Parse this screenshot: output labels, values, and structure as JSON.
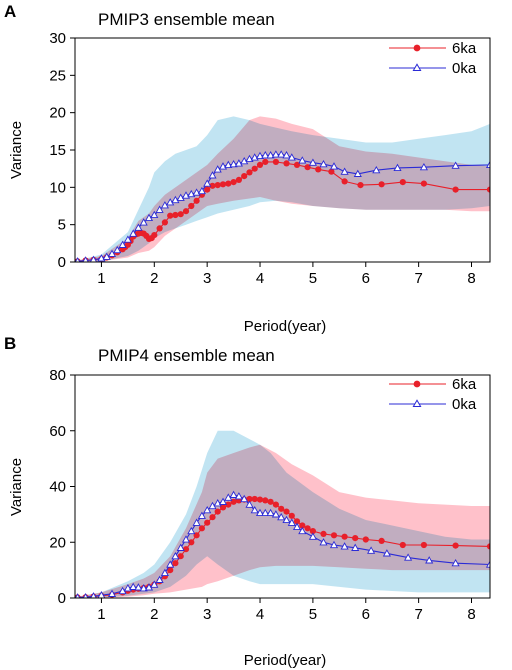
{
  "chart_data": [
    {
      "type": "line",
      "panel_label": "A",
      "title": "PMIP3 ensemble mean",
      "xlabel": "Period(year)",
      "ylabel": "Variance",
      "xlim": [
        0.5,
        8.35
      ],
      "ylim": [
        0,
        30
      ],
      "xticks": [
        1,
        2,
        3,
        4,
        5,
        6,
        7,
        8
      ],
      "yticks": [
        0,
        5,
        10,
        15,
        20,
        25,
        30
      ],
      "grid": false,
      "legend_position": "top-right",
      "series": [
        {
          "name": "6ka",
          "color": "#e8202a",
          "marker": "filled-circle",
          "x": [
            0.55,
            0.7,
            0.85,
            1.0,
            1.1,
            1.2,
            1.3,
            1.4,
            1.45,
            1.5,
            1.55,
            1.6,
            1.65,
            1.7,
            1.75,
            1.8,
            1.85,
            1.9,
            1.95,
            2.0,
            2.1,
            2.2,
            2.3,
            2.4,
            2.5,
            2.6,
            2.7,
            2.8,
            2.9,
            3.0,
            3.1,
            3.2,
            3.3,
            3.4,
            3.5,
            3.6,
            3.7,
            3.8,
            3.9,
            4.0,
            4.1,
            4.3,
            4.5,
            4.7,
            4.9,
            5.1,
            5.35,
            5.6,
            5.9,
            6.3,
            6.7,
            7.1,
            7.7,
            8.35
          ],
          "values": [
            0.1,
            0.2,
            0.3,
            0.4,
            0.6,
            0.9,
            1.3,
            1.7,
            2.0,
            2.3,
            2.8,
            3.4,
            3.7,
            3.8,
            3.9,
            3.8,
            3.5,
            3.1,
            3.2,
            3.6,
            4.5,
            5.3,
            6.2,
            6.3,
            6.4,
            6.8,
            7.5,
            8.2,
            9.0,
            9.7,
            10.2,
            10.3,
            10.4,
            10.5,
            10.7,
            11.0,
            11.5,
            12.0,
            12.5,
            13.0,
            13.4,
            13.4,
            13.2,
            13.0,
            12.7,
            12.4,
            12.1,
            10.8,
            10.3,
            10.4,
            10.7,
            10.5,
            9.7,
            9.7
          ]
        },
        {
          "name": "0ka",
          "color": "#2b2bd6",
          "marker": "open-triangle",
          "x": [
            0.55,
            0.7,
            0.85,
            1.0,
            1.1,
            1.2,
            1.3,
            1.4,
            1.5,
            1.6,
            1.7,
            1.8,
            1.9,
            2.0,
            2.1,
            2.2,
            2.3,
            2.4,
            2.5,
            2.6,
            2.7,
            2.8,
            2.9,
            3.0,
            3.1,
            3.2,
            3.3,
            3.4,
            3.5,
            3.6,
            3.7,
            3.8,
            3.9,
            4.0,
            4.1,
            4.2,
            4.3,
            4.4,
            4.5,
            4.6,
            4.8,
            5.0,
            5.2,
            5.4,
            5.6,
            5.85,
            6.2,
            6.6,
            7.1,
            7.7,
            8.35
          ],
          "values": [
            0.1,
            0.2,
            0.3,
            0.5,
            0.7,
            1.1,
            1.6,
            2.3,
            3.0,
            3.8,
            4.6,
            5.3,
            5.9,
            6.3,
            7.0,
            7.6,
            8.0,
            8.3,
            8.6,
            8.9,
            9.1,
            9.3,
            9.5,
            10.5,
            11.6,
            12.4,
            12.8,
            13.0,
            13.1,
            13.2,
            13.5,
            13.8,
            14.0,
            14.2,
            14.3,
            14.3,
            14.4,
            14.4,
            14.3,
            14.0,
            13.6,
            13.3,
            13.1,
            12.8,
            12.1,
            11.8,
            12.3,
            12.6,
            12.7,
            12.9,
            13.0
          ]
        }
      ],
      "bands": [
        {
          "name": "6ka range",
          "color": "#ffb6c1",
          "x": [
            0.55,
            1.0,
            1.5,
            1.7,
            1.9,
            2.0,
            2.2,
            2.5,
            2.8,
            3.0,
            3.2,
            3.5,
            3.8,
            4.0,
            4.3,
            4.6,
            5.0,
            5.5,
            6.0,
            6.5,
            7.0,
            7.5,
            8.0,
            8.35
          ],
          "lower": [
            0,
            0.1,
            0.6,
            1.2,
            1.5,
            2.0,
            3.5,
            5.0,
            6.5,
            7.5,
            7.8,
            8.2,
            8.5,
            8.7,
            8.2,
            7.8,
            7.5,
            7.2,
            7.0,
            7.0,
            7.0,
            7.0,
            6.8,
            6.8
          ],
          "upper": [
            0.2,
            0.8,
            3.2,
            5.5,
            6.5,
            7.5,
            9.0,
            10.5,
            12.0,
            13.0,
            14.5,
            16.5,
            19.0,
            19.5,
            19.2,
            18.5,
            17.8,
            15.5,
            14.8,
            14.5,
            14.0,
            13.5,
            13.0,
            12.8
          ]
        },
        {
          "name": "0ka range",
          "color": "#a6d8ec",
          "x": [
            0.55,
            1.0,
            1.5,
            1.7,
            1.9,
            2.0,
            2.2,
            2.4,
            2.6,
            2.8,
            3.0,
            3.2,
            3.5,
            3.8,
            4.0,
            4.3,
            4.6,
            5.0,
            5.5,
            6.0,
            6.5,
            7.0,
            7.5,
            8.0,
            8.35
          ],
          "lower": [
            0,
            0.1,
            0.8,
            1.5,
            2.5,
            3.2,
            4.0,
            4.5,
            5.0,
            5.5,
            6.0,
            6.5,
            7.0,
            7.5,
            8.0,
            8.2,
            8.0,
            7.5,
            7.2,
            7.0,
            7.0,
            7.0,
            7.0,
            7.2,
            7.5
          ],
          "upper": [
            0.2,
            1.0,
            4.0,
            7.0,
            10.0,
            12.0,
            13.5,
            14.5,
            15.0,
            15.5,
            17.0,
            19.0,
            19.5,
            19.0,
            18.5,
            18.0,
            17.5,
            17.0,
            16.5,
            16.0,
            16.0,
            16.5,
            17.0,
            17.5,
            18.5
          ]
        }
      ]
    },
    {
      "type": "line",
      "panel_label": "B",
      "title": "PMIP4 ensemble mean",
      "xlabel": "Period(year)",
      "ylabel": "Variance",
      "xlim": [
        0.5,
        8.35
      ],
      "ylim": [
        0,
        80
      ],
      "xticks": [
        1,
        2,
        3,
        4,
        5,
        6,
        7,
        8
      ],
      "yticks": [
        0,
        20,
        40,
        60,
        80
      ],
      "grid": false,
      "legend_position": "top-right",
      "series": [
        {
          "name": "6ka",
          "color": "#e8202a",
          "marker": "filled-circle",
          "x": [
            0.55,
            0.7,
            0.85,
            1.0,
            1.2,
            1.4,
            1.5,
            1.6,
            1.7,
            1.8,
            1.9,
            2.0,
            2.1,
            2.2,
            2.3,
            2.4,
            2.5,
            2.6,
            2.7,
            2.8,
            2.9,
            3.0,
            3.1,
            3.2,
            3.3,
            3.4,
            3.5,
            3.6,
            3.7,
            3.8,
            3.9,
            4.0,
            4.1,
            4.2,
            4.3,
            4.4,
            4.5,
            4.6,
            4.7,
            4.8,
            4.9,
            5.0,
            5.2,
            5.4,
            5.6,
            5.8,
            6.0,
            6.3,
            6.7,
            7.1,
            7.7,
            8.35
          ],
          "values": [
            0.2,
            0.3,
            0.5,
            0.8,
            1.2,
            2.0,
            2.6,
            3.0,
            3.3,
            3.6,
            4.0,
            4.8,
            6.0,
            7.8,
            10.0,
            12.5,
            15.0,
            17.5,
            20.0,
            22.5,
            25.0,
            27.0,
            29.0,
            31.0,
            32.5,
            33.5,
            34.5,
            35.0,
            35.3,
            35.5,
            35.5,
            35.3,
            35.0,
            34.5,
            33.5,
            32.0,
            31.0,
            29.5,
            27.5,
            26.0,
            25.0,
            24.0,
            23.0,
            22.5,
            22.0,
            21.5,
            21.0,
            20.5,
            19.0,
            19.0,
            18.8,
            18.5
          ]
        },
        {
          "name": "0ka",
          "color": "#2b2bd6",
          "marker": "open-triangle",
          "x": [
            0.55,
            0.7,
            0.85,
            1.0,
            1.2,
            1.4,
            1.5,
            1.6,
            1.7,
            1.8,
            1.9,
            2.0,
            2.1,
            2.2,
            2.3,
            2.4,
            2.5,
            2.6,
            2.7,
            2.8,
            2.9,
            3.0,
            3.1,
            3.2,
            3.3,
            3.4,
            3.5,
            3.6,
            3.7,
            3.8,
            3.9,
            4.0,
            4.1,
            4.2,
            4.3,
            4.4,
            4.5,
            4.6,
            4.7,
            4.8,
            5.0,
            5.2,
            5.4,
            5.6,
            5.8,
            6.1,
            6.4,
            6.8,
            7.2,
            7.7,
            8.35
          ],
          "values": [
            0.2,
            0.3,
            0.6,
            1.0,
            1.5,
            2.5,
            3.5,
            4.0,
            3.8,
            3.5,
            3.8,
            4.8,
            6.5,
            9.0,
            12.0,
            15.0,
            18.0,
            21.0,
            24.0,
            27.0,
            29.5,
            31.5,
            33.0,
            34.0,
            34.5,
            36.0,
            37.0,
            36.5,
            35.5,
            33.5,
            31.5,
            30.5,
            30.5,
            30.5,
            30.0,
            29.0,
            28.0,
            27.0,
            25.5,
            24.0,
            22.0,
            20.0,
            19.0,
            18.5,
            18.0,
            17.0,
            16.0,
            14.5,
            13.5,
            12.5,
            12.0
          ]
        }
      ],
      "bands": [
        {
          "name": "6ka range",
          "color": "#ffb6c1",
          "x": [
            0.55,
            1.0,
            1.5,
            1.8,
            2.0,
            2.3,
            2.6,
            2.9,
            3.0,
            3.2,
            3.5,
            3.8,
            4.0,
            4.3,
            4.6,
            5.0,
            5.5,
            6.0,
            6.5,
            7.0,
            7.5,
            8.0,
            8.35
          ],
          "lower": [
            0,
            0.1,
            0.5,
            1.0,
            1.5,
            2.0,
            3.0,
            4.0,
            5.0,
            6.0,
            8.0,
            10.0,
            11.0,
            11.5,
            11.5,
            11.5,
            11.0,
            10.5,
            10.0,
            10.0,
            10.0,
            10.0,
            10.0
          ],
          "upper": [
            0.5,
            2.0,
            5.0,
            7.0,
            9.0,
            15.0,
            25.0,
            38.0,
            45.0,
            50.0,
            52.0,
            54.0,
            55.0,
            52.0,
            48.0,
            44.0,
            38.0,
            36.0,
            35.0,
            34.0,
            33.5,
            33.0,
            33.0
          ]
        },
        {
          "name": "0ka range",
          "color": "#a6d8ec",
          "x": [
            0.55,
            1.0,
            1.5,
            1.8,
            2.0,
            2.3,
            2.6,
            2.8,
            3.0,
            3.2,
            3.5,
            3.8,
            4.0,
            4.2,
            4.5,
            5.0,
            5.5,
            6.0,
            6.5,
            7.0,
            7.5,
            8.0,
            8.35
          ],
          "lower": [
            0,
            0.2,
            0.8,
            1.5,
            2.0,
            4.0,
            8.0,
            12.0,
            15.0,
            12.0,
            8.0,
            6.0,
            5.0,
            5.0,
            5.0,
            5.0,
            4.0,
            3.0,
            2.5,
            2.0,
            2.0,
            2.0,
            2.0
          ],
          "upper": [
            0.5,
            2.0,
            6.0,
            9.0,
            12.0,
            20.0,
            30.0,
            40.0,
            52.0,
            60.0,
            60.0,
            57.0,
            55.0,
            52.0,
            45.0,
            38.0,
            32.0,
            28.0,
            26.0,
            24.0,
            22.0,
            21.0,
            21.0
          ]
        }
      ]
    }
  ]
}
